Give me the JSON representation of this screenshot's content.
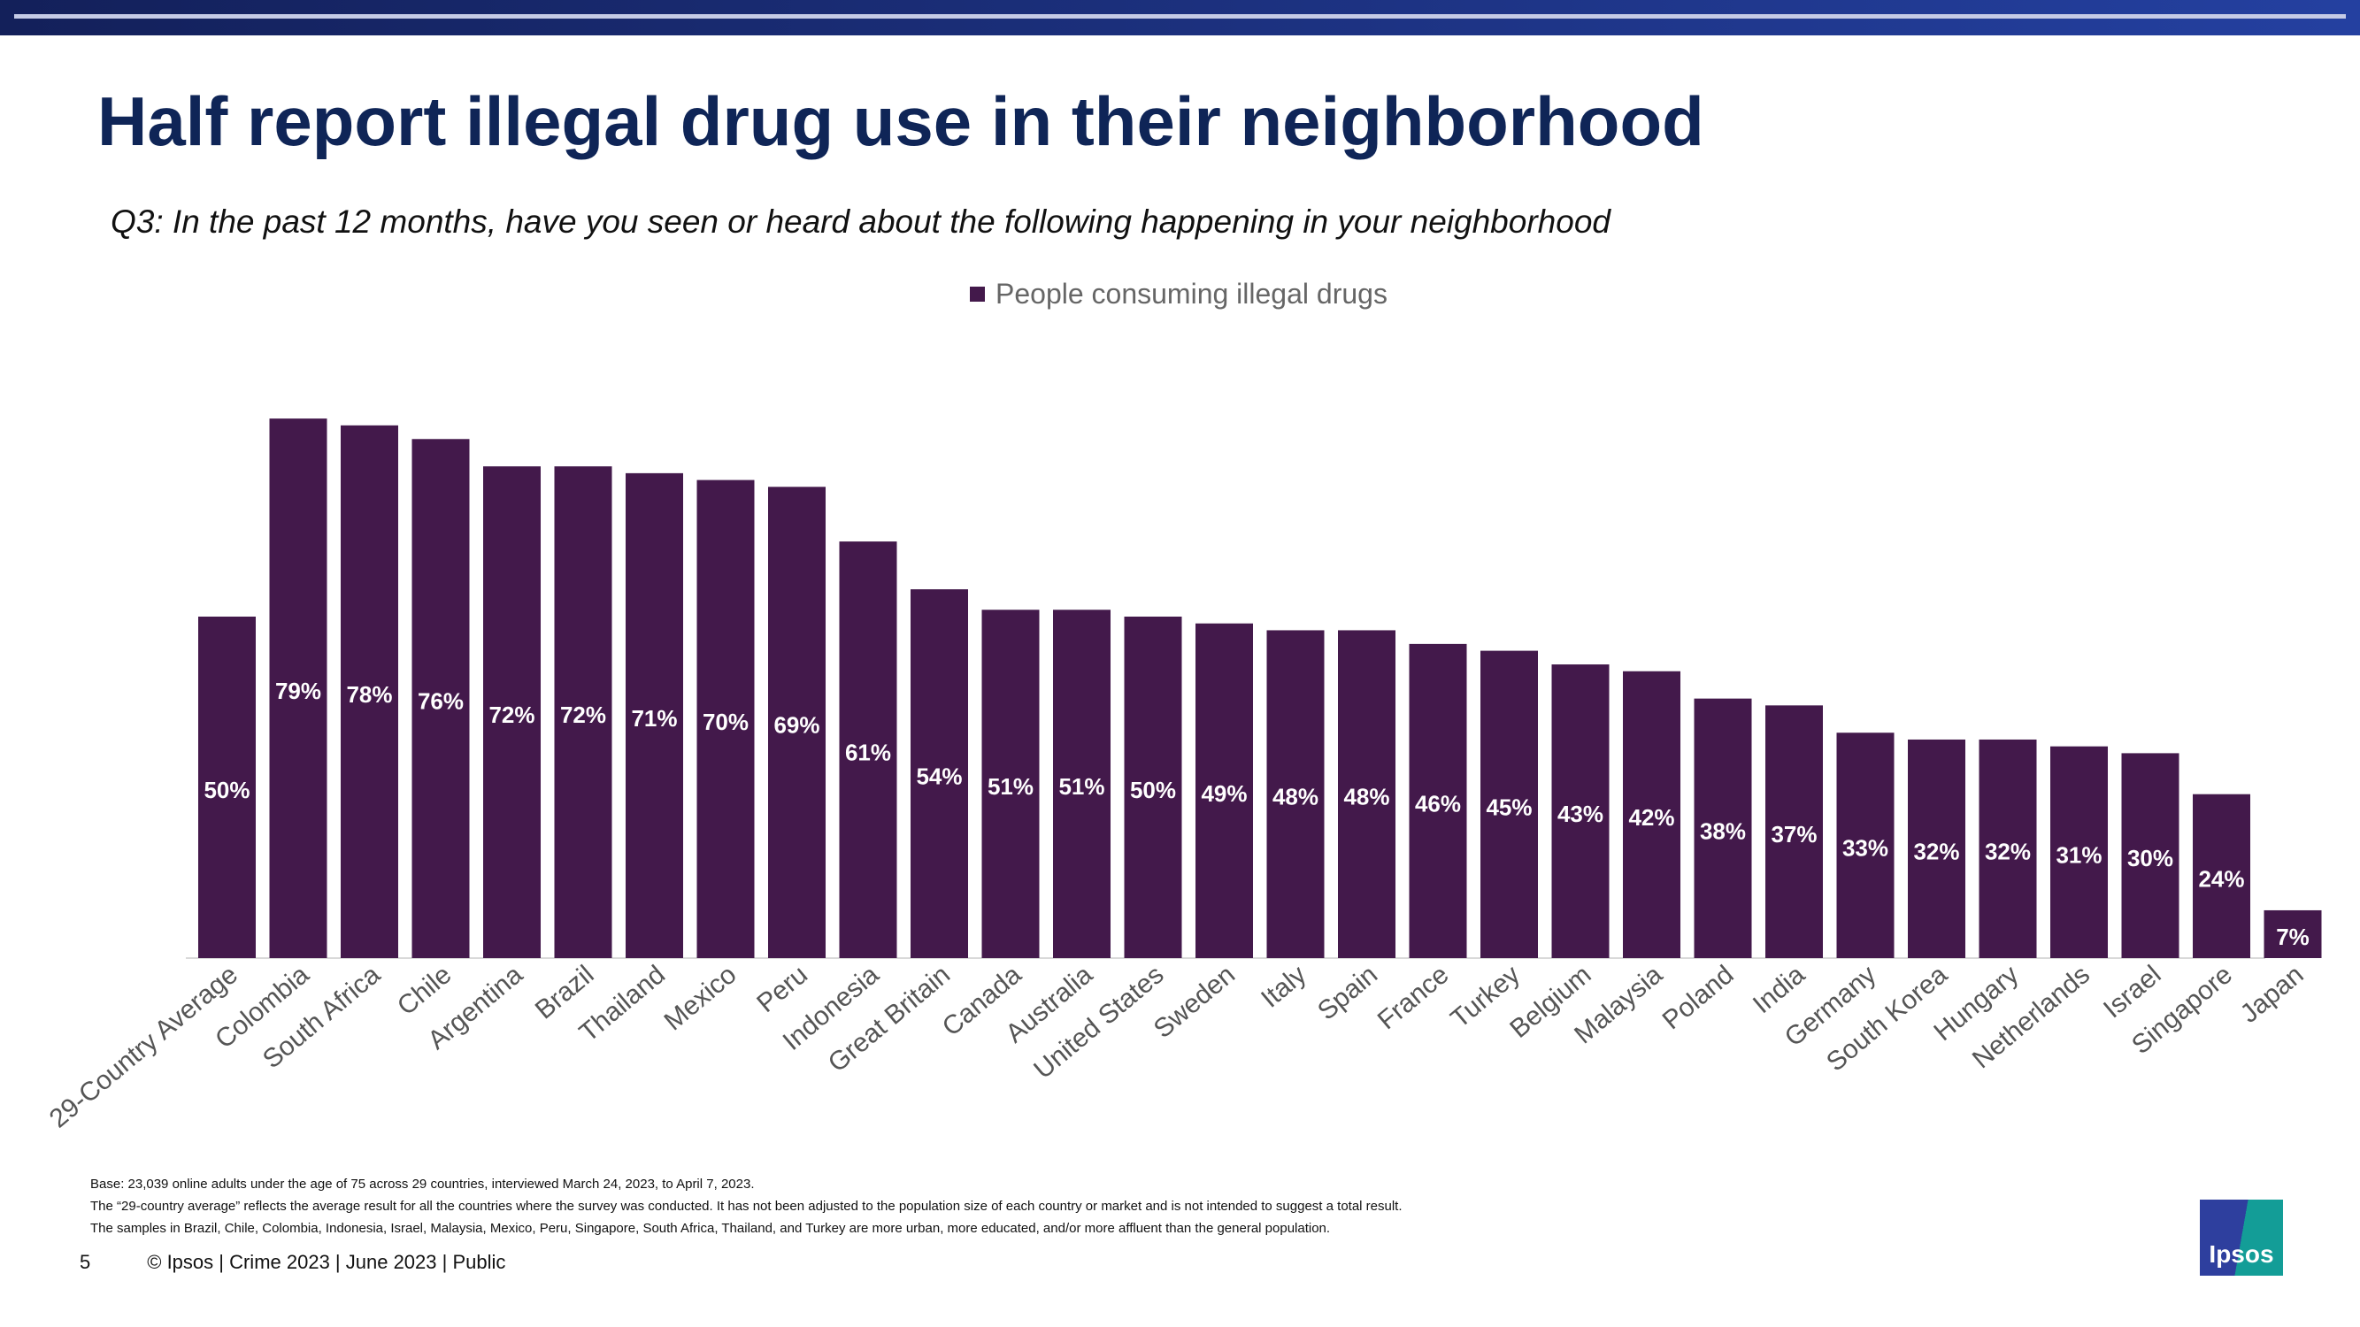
{
  "header": {
    "title": "Half report illegal drug use in their neighborhood",
    "subtitle": "Q3: In the past 12 months, have you seen or heard about the following happening in your neighborhood"
  },
  "chart_data": {
    "type": "bar",
    "categories": [
      "29-Country Average",
      "Colombia",
      "South Africa",
      "Chile",
      "Argentina",
      "Brazil",
      "Thailand",
      "Mexico",
      "Peru",
      "Indonesia",
      "Great Britain",
      "Canada",
      "Australia",
      "United States",
      "Sweden",
      "Italy",
      "Spain",
      "France",
      "Turkey",
      "Belgium",
      "Malaysia",
      "Poland",
      "India",
      "Germany",
      "South Korea",
      "Hungary",
      "Netherlands",
      "Israel",
      "Singapore",
      "Japan"
    ],
    "series": [
      {
        "name": "People consuming illegal drugs",
        "values": [
          50,
          79,
          78,
          76,
          72,
          72,
          71,
          70,
          69,
          61,
          54,
          51,
          51,
          50,
          49,
          48,
          48,
          46,
          45,
          43,
          42,
          38,
          37,
          33,
          32,
          32,
          31,
          30,
          24,
          7
        ]
      }
    ],
    "value_suffix": "%",
    "ylim": [
      0,
      80
    ],
    "grid": false,
    "legend_placement": "top-center",
    "bar_color": "#43194b"
  },
  "notes": [
    "Base: 23,039 online adults under the age of 75 across 29 countries, interviewed March 24, 2023, to April 7, 2023.",
    "The “29-country average” reflects the average result for all the countries where the survey was conducted. It has not been adjusted to the population size of each country or market and is not intended to suggest a total result.",
    "The samples in Brazil, Chile, Colombia, Indonesia, Israel, Malaysia, Mexico, Peru, Singapore, South Africa, Thailand, and Turkey are more urban, more educated, and/or more affluent than the general population."
  ],
  "footer": {
    "page": "5",
    "text": "© Ipsos | Crime 2023 | June 2023 | Public"
  },
  "logo": {
    "text": "Ipsos"
  }
}
